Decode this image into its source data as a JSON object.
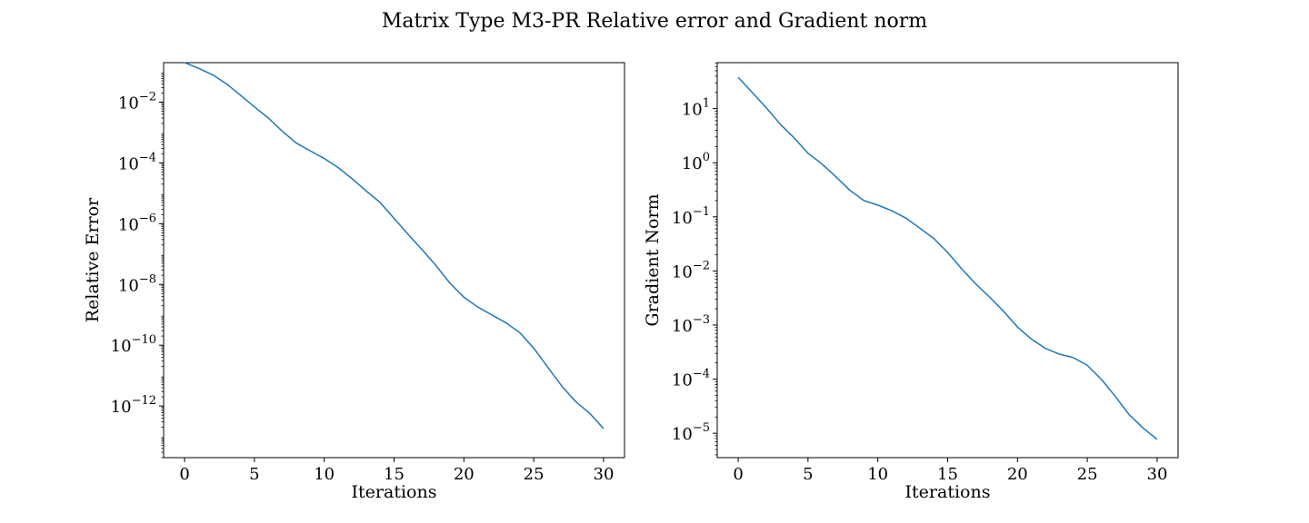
{
  "figure_title": "Matrix Type  M3-PR Relative error and Gradient norm",
  "chart_data": [
    {
      "type": "line",
      "xlabel": "Iterations",
      "ylabel": "Relative Error",
      "yscale": "log",
      "xlim": [
        -1.5,
        31.5
      ],
      "ylim_log10": [
        -13.7,
        -0.7
      ],
      "x_ticks": [
        0,
        5,
        10,
        15,
        20,
        25,
        30
      ],
      "y_tick_exponents": [
        -2,
        -4,
        -6,
        -8,
        -10,
        -12
      ],
      "grid": false,
      "line_color": "#1f77b4",
      "series": [
        {
          "x": [
            0,
            1,
            2,
            3,
            4,
            5,
            6,
            7,
            8,
            9,
            10,
            11,
            12,
            13,
            14,
            15,
            16,
            17,
            18,
            19,
            20,
            21,
            22,
            23,
            24,
            25,
            26,
            27,
            28,
            29,
            30
          ],
          "y": [
            0.2,
            0.13,
            0.08,
            0.04,
            0.017,
            0.007,
            0.003,
            0.0011,
            0.00045,
            0.00025,
            0.00014,
            7e-05,
            3e-05,
            1.2e-05,
            5e-06,
            1.5e-06,
            4.5e-07,
            1.4e-07,
            4.2e-08,
            1.1e-08,
            3.8e-09,
            1.8e-09,
            1e-09,
            5.5e-10,
            2.6e-10,
            8e-11,
            1.9e-11,
            4.6e-12,
            1.4e-12,
            5.8e-13,
            1.8e-13
          ]
        }
      ]
    },
    {
      "type": "line",
      "xlabel": "Iterations",
      "ylabel": "Gradient Norm",
      "yscale": "log",
      "xlim": [
        -1.5,
        31.5
      ],
      "ylim_log10": [
        -5.45,
        1.85
      ],
      "x_ticks": [
        0,
        5,
        10,
        15,
        20,
        25,
        30
      ],
      "y_tick_exponents": [
        1,
        0,
        -1,
        -2,
        -3,
        -4,
        -5
      ],
      "grid": false,
      "line_color": "#1f77b4",
      "series": [
        {
          "x": [
            0,
            1,
            2,
            3,
            4,
            5,
            6,
            7,
            8,
            9,
            10,
            11,
            12,
            13,
            14,
            15,
            16,
            17,
            18,
            19,
            20,
            21,
            22,
            23,
            24,
            25,
            26,
            27,
            28,
            29,
            30
          ],
          "y": [
            38,
            20,
            10.5,
            5.2,
            2.9,
            1.5,
            0.95,
            0.55,
            0.31,
            0.2,
            0.165,
            0.13,
            0.095,
            0.062,
            0.04,
            0.022,
            0.011,
            0.0058,
            0.0033,
            0.0018,
            0.00092,
            0.00055,
            0.00037,
            0.00029,
            0.00025,
            0.00018,
            0.0001,
            4.8e-05,
            2.2e-05,
            1.25e-05,
            7.7e-06
          ]
        }
      ]
    }
  ]
}
